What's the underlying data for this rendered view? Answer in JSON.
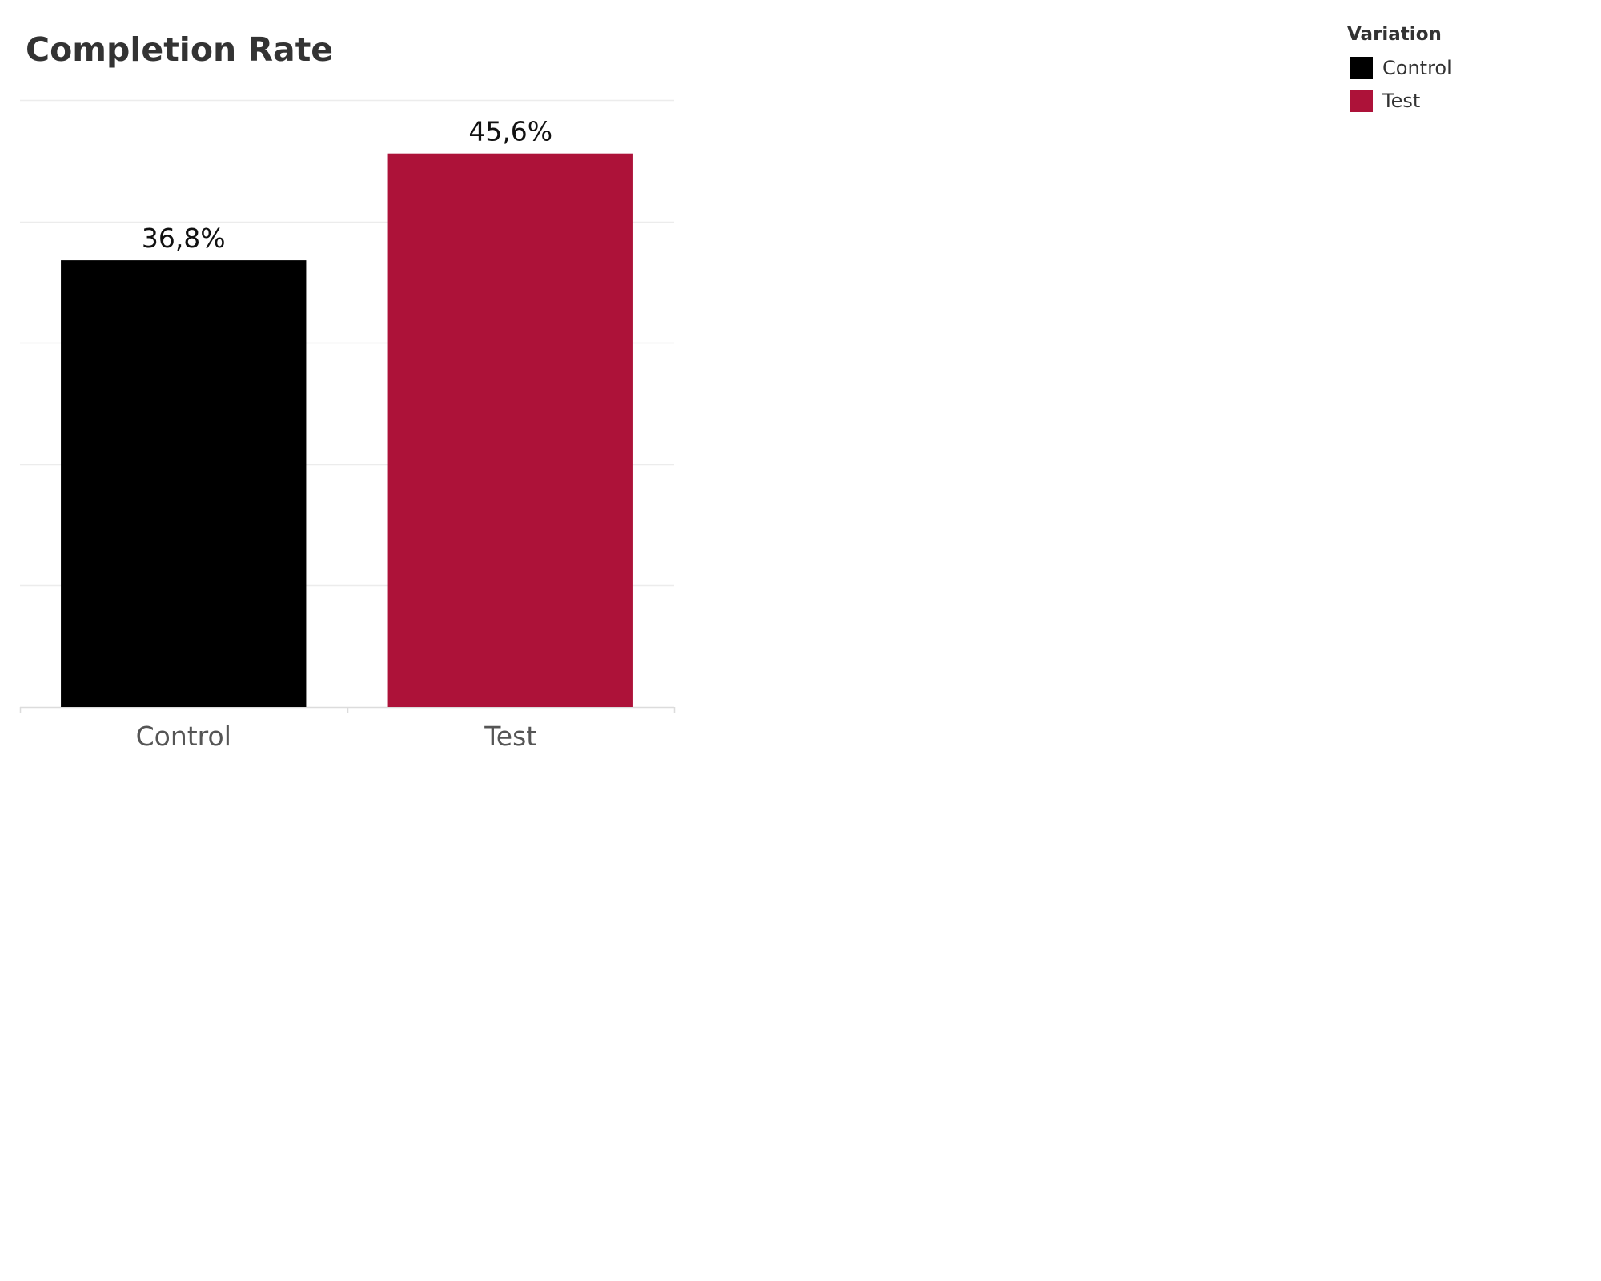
{
  "chart_data": {
    "type": "bar",
    "title": "Completion Rate",
    "categories": [
      "Control",
      "Test"
    ],
    "values": [
      0.368,
      0.456
    ],
    "value_labels": [
      "36,8%",
      "45,6%"
    ],
    "colors": [
      "#000000",
      "#AD1239"
    ],
    "ylim": [
      0,
      0.5
    ],
    "grid": true,
    "legend": {
      "title": "Variation",
      "position": "top-right",
      "entries": [
        "Control",
        "Test"
      ]
    }
  }
}
